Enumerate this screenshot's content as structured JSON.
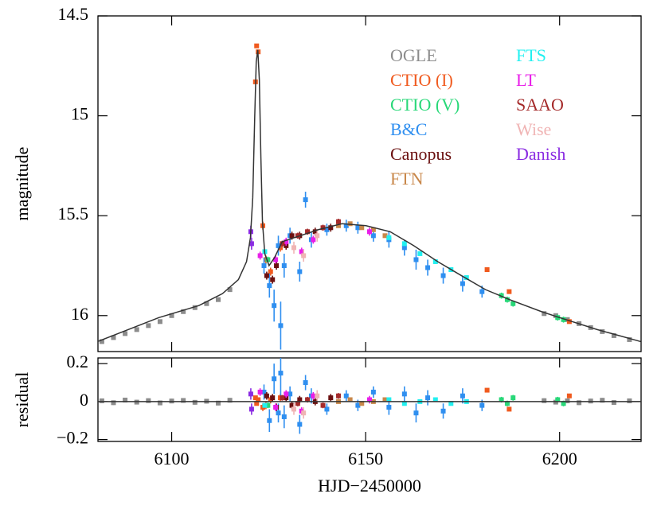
{
  "chart_data": [
    {
      "type": "scatter",
      "y_label": "magnitude",
      "xlim": [
        6081,
        6221
      ],
      "ylim": [
        16.18,
        14.5
      ],
      "yticks": [
        14.5,
        15,
        15.5,
        16
      ],
      "legend": "upper right",
      "series": [
        {
          "name": "OGLE",
          "color": "#8c8c8c",
          "x": [
            6082,
            6085,
            6088,
            6091,
            6094,
            6097,
            6100,
            6103,
            6106,
            6109,
            6112,
            6115,
            6196,
            6199,
            6202,
            6205,
            6208,
            6211,
            6214,
            6218
          ],
          "values": [
            16.13,
            16.11,
            16.09,
            16.07,
            16.05,
            16.03,
            16.0,
            15.98,
            15.96,
            15.94,
            15.92,
            15.87,
            15.99,
            16.0,
            16.02,
            16.04,
            16.06,
            16.08,
            16.1,
            16.12
          ],
          "errors": [
            0.01,
            0.01,
            0.01,
            0.01,
            0.01,
            0.01,
            0.01,
            0.01,
            0.01,
            0.01,
            0.01,
            0.01,
            0.01,
            0.01,
            0.01,
            0.01,
            0.01,
            0.01,
            0.01,
            0.01
          ]
        },
        {
          "name": "CTIO (I)",
          "color": "#f05a1e",
          "x": [
            6121.6,
            6121.9,
            6122.3,
            6123.5,
            6124.3,
            6125.5,
            6128,
            6181.3,
            6187,
            6202.5
          ],
          "values": [
            14.83,
            14.65,
            14.68,
            15.55,
            15.72,
            15.78,
            15.66,
            15.77,
            15.88,
            16.03
          ],
          "errors": [
            0.01,
            0.01,
            0.01,
            0.02,
            0.02,
            0.02,
            0.02,
            0.01,
            0.01,
            0.01
          ]
        },
        {
          "name": "CTIO (V)",
          "color": "#28d878",
          "x": [
            6124.8,
            6185,
            6186.5,
            6188,
            6199.5,
            6201
          ],
          "values": [
            15.72,
            15.9,
            15.92,
            15.94,
            16.01,
            16.02
          ],
          "errors": [
            0.015,
            0.015,
            0.015,
            0.015,
            0.015,
            0.015
          ]
        },
        {
          "name": "B&C",
          "color": "#2f8ff0",
          "x": [
            6123.8,
            6125.2,
            6126.4,
            6127.5,
            6128.1,
            6129,
            6130.5,
            6133,
            6134.5,
            6136,
            6140,
            6145,
            6148,
            6152,
            6156,
            6160,
            6163,
            6166,
            6170,
            6175,
            6180
          ],
          "values": [
            15.75,
            15.85,
            15.95,
            15.65,
            16.05,
            15.75,
            15.6,
            15.78,
            15.42,
            15.62,
            15.57,
            15.55,
            15.56,
            15.6,
            15.62,
            15.66,
            15.72,
            15.76,
            15.8,
            15.84,
            15.88
          ],
          "errors": [
            0.04,
            0.06,
            0.08,
            0.05,
            0.12,
            0.06,
            0.04,
            0.05,
            0.04,
            0.04,
            0.03,
            0.03,
            0.03,
            0.03,
            0.04,
            0.04,
            0.05,
            0.04,
            0.04,
            0.04,
            0.03
          ]
        },
        {
          "name": "Canopus",
          "color": "#6b1010",
          "x": [
            6124.5,
            6126,
            6127,
            6129.5,
            6131,
            6133,
            6137,
            6141
          ],
          "values": [
            15.8,
            15.82,
            15.75,
            15.65,
            15.6,
            15.6,
            15.58,
            15.56
          ],
          "errors": [
            0.02,
            0.02,
            0.02,
            0.02,
            0.02,
            0.02,
            0.02,
            0.02
          ]
        },
        {
          "name": "FTN",
          "color": "#c8874a",
          "x": [
            6143,
            6146,
            6149,
            6152,
            6155
          ],
          "values": [
            15.55,
            15.54,
            15.56,
            15.57,
            15.6
          ],
          "errors": [
            0.01,
            0.01,
            0.01,
            0.01,
            0.01
          ]
        },
        {
          "name": "FTS",
          "color": "#22f0f0",
          "x": [
            6124,
            6156,
            6160,
            6164,
            6168,
            6172,
            6176
          ],
          "values": [
            15.68,
            15.61,
            15.64,
            15.69,
            15.73,
            15.77,
            15.81
          ],
          "errors": [
            0.01,
            0.01,
            0.01,
            0.01,
            0.01,
            0.01,
            0.01
          ]
        },
        {
          "name": "LT",
          "color": "#e81ee8",
          "x": [
            6122.8,
            6126.8,
            6129.5,
            6133.5,
            6136.5,
            6151
          ],
          "values": [
            15.7,
            15.72,
            15.63,
            15.68,
            15.62,
            15.58
          ],
          "errors": [
            0.02,
            0.02,
            0.02,
            0.02,
            0.02,
            0.02
          ]
        },
        {
          "name": "SAAO",
          "color": "#a52a2a",
          "x": [
            6128.5,
            6132.5,
            6135,
            6139,
            6143
          ],
          "values": [
            15.64,
            15.6,
            15.58,
            15.56,
            15.53
          ],
          "errors": [
            0.015,
            0.015,
            0.015,
            0.015,
            0.015
          ]
        },
        {
          "name": "Wise",
          "color": "#f0b4b4",
          "x": [
            6131.5,
            6134,
            6137.5
          ],
          "values": [
            15.66,
            15.7,
            15.6
          ],
          "errors": [
            0.03,
            0.03,
            0.03
          ]
        },
        {
          "name": "Danish",
          "color": "#8a2be2",
          "x": [
            6120.4,
            6120.6
          ],
          "values": [
            15.58,
            15.64
          ],
          "errors": [
            0.03,
            0.03
          ]
        },
        {
          "color": "#333333",
          "style": "line",
          "x": [
            6080.9,
            6096.7,
            6107.0,
            6113.1,
            6117.2,
            6119.3,
            6120.3,
            6120.9,
            6121.4,
            6121.8,
            6122.2,
            6122.6,
            6123.0,
            6123.4,
            6124.0,
            6125.1,
            6126.5,
            6128.5,
            6131.6,
            6137.8,
            6143.9,
            6150.1,
            6156.3,
            6162.4,
            6168.6,
            6174.7,
            6180.9,
            6187.1,
            6195.3,
            6200.0,
            6209.7,
            6220.9
          ],
          "values": [
            16.13,
            16.01,
            15.95,
            15.89,
            15.82,
            15.73,
            15.61,
            15.41,
            15.01,
            14.73,
            14.67,
            14.82,
            15.21,
            15.53,
            15.69,
            15.75,
            15.71,
            15.63,
            15.61,
            15.57,
            15.54,
            15.55,
            15.58,
            15.65,
            15.73,
            15.8,
            15.87,
            15.92,
            15.98,
            16.01,
            16.07,
            16.13
          ]
        }
      ]
    },
    {
      "type": "scatter",
      "x_label": "HJD−2450000",
      "y_label": "residual",
      "xlim": [
        6081,
        6221
      ],
      "ylim": [
        -0.21,
        0.23
      ],
      "xticks": [
        6100,
        6150,
        6200
      ],
      "yticks": [
        {
          "value": -0.2,
          "label": "−0.2"
        },
        0,
        0.2
      ],
      "series": [
        {
          "color": "#8c8c8c",
          "x": [
            6082,
            6085,
            6088,
            6091,
            6094,
            6097,
            6100,
            6103,
            6106,
            6109,
            6112,
            6115,
            6196,
            6199,
            6202,
            6205,
            6208,
            6211,
            6214,
            6218
          ],
          "values": [
            0.004,
            -0.006,
            0.008,
            -0.003,
            0.005,
            -0.007,
            0.003,
            0.006,
            -0.004,
            0.002,
            -0.008,
            0.007,
            0.005,
            -0.003,
            0.004,
            -0.006,
            0.003,
            0.007,
            -0.005,
            0.004
          ],
          "errors": [
            0.012,
            0.012,
            0.012,
            0.012,
            0.012,
            0.012,
            0.012,
            0.012,
            0.012,
            0.012,
            0.012,
            0.012,
            0.012,
            0.012,
            0.012,
            0.012,
            0.012,
            0.012,
            0.012,
            0.012
          ]
        },
        {
          "color": "#f05a1e",
          "x": [
            6121.6,
            6121.9,
            6122.3,
            6123.5,
            6124.3,
            6125.5,
            6128,
            6181.3,
            6187,
            6202.5
          ],
          "values": [
            0.02,
            -0.01,
            0.01,
            -0.03,
            -0.02,
            0.01,
            0.02,
            0.06,
            -0.04,
            0.03
          ],
          "errors": [
            0.01,
            0.01,
            0.01,
            0.02,
            0.02,
            0.02,
            0.02,
            0.01,
            0.01,
            0.01
          ]
        },
        {
          "color": "#28d878",
          "x": [
            6124.8,
            6185,
            6186.5,
            6188,
            6199.5,
            6201
          ],
          "values": [
            -0.02,
            0.01,
            -0.01,
            0.02,
            0.01,
            -0.01
          ],
          "errors": [
            0.015,
            0.015,
            0.015,
            0.015,
            0.015,
            0.015
          ]
        },
        {
          "color": "#2f8ff0",
          "x": [
            6123.8,
            6125.2,
            6126.4,
            6127.5,
            6128.1,
            6129,
            6130.5,
            6133,
            6134.5,
            6136,
            6140,
            6145,
            6148,
            6152,
            6156,
            6160,
            6163,
            6166,
            6170,
            6175,
            6180
          ],
          "values": [
            0.05,
            -0.1,
            0.12,
            -0.06,
            0.15,
            -0.08,
            0.04,
            -0.12,
            0.1,
            0.03,
            -0.04,
            0.03,
            -0.02,
            0.05,
            -0.03,
            0.04,
            -0.06,
            0.02,
            -0.05,
            0.03,
            -0.02
          ],
          "errors": [
            0.04,
            0.06,
            0.08,
            0.05,
            0.12,
            0.06,
            0.04,
            0.05,
            0.04,
            0.04,
            0.03,
            0.03,
            0.03,
            0.03,
            0.04,
            0.04,
            0.05,
            0.04,
            0.04,
            0.04,
            0.03
          ]
        },
        {
          "color": "#6b1010",
          "x": [
            6124.5,
            6126,
            6127,
            6129.5,
            6131,
            6133,
            6137,
            6141
          ],
          "values": [
            0.03,
            0.02,
            -0.03,
            0.02,
            -0.02,
            0.01,
            0,
            0.02
          ],
          "errors": [
            0.02,
            0.02,
            0.02,
            0.02,
            0.02,
            0.02,
            0.02,
            0.02
          ]
        },
        {
          "color": "#c8874a",
          "x": [
            6143,
            6146,
            6149,
            6152,
            6155
          ],
          "values": [
            0,
            0.01,
            -0.01,
            0,
            0.01
          ],
          "errors": [
            0.01,
            0.01,
            0.01,
            0.01,
            0.01
          ]
        },
        {
          "color": "#22f0f0",
          "x": [
            6124,
            6156,
            6160,
            6164,
            6168,
            6172,
            6176
          ],
          "values": [
            -0.02,
            0.01,
            -0.01,
            0,
            0.01,
            -0.01,
            0
          ],
          "errors": [
            0.01,
            0.01,
            0.01,
            0.01,
            0.01,
            0.01,
            0.01
          ]
        },
        {
          "color": "#e81ee8",
          "x": [
            6122.8,
            6126.8,
            6129.5,
            6133.5,
            6136.5,
            6151
          ],
          "values": [
            0.05,
            -0.03,
            0.04,
            -0.05,
            0.03,
            0.01
          ],
          "errors": [
            0.02,
            0.02,
            0.02,
            0.02,
            0.02,
            0.02
          ]
        },
        {
          "color": "#a52a2a",
          "x": [
            6128.5,
            6132.5,
            6135,
            6139,
            6143
          ],
          "values": [
            0.02,
            -0.01,
            0.01,
            -0.02,
            0.03
          ],
          "errors": [
            0.015,
            0.015,
            0.015,
            0.015,
            0.015
          ]
        },
        {
          "color": "#f0b4b4",
          "x": [
            6131.5,
            6134,
            6137.5
          ],
          "values": [
            -0.04,
            -0.06,
            0.03
          ],
          "errors": [
            0.03,
            0.03,
            0.03
          ]
        },
        {
          "color": "#8a2be2",
          "x": [
            6120.4,
            6120.6
          ],
          "values": [
            0.04,
            -0.04
          ],
          "errors": [
            0.03,
            0.03
          ]
        },
        {
          "color": "#333333",
          "style": "line",
          "x": [
            6081,
            6221
          ],
          "values": [
            0,
            0
          ]
        }
      ]
    }
  ]
}
